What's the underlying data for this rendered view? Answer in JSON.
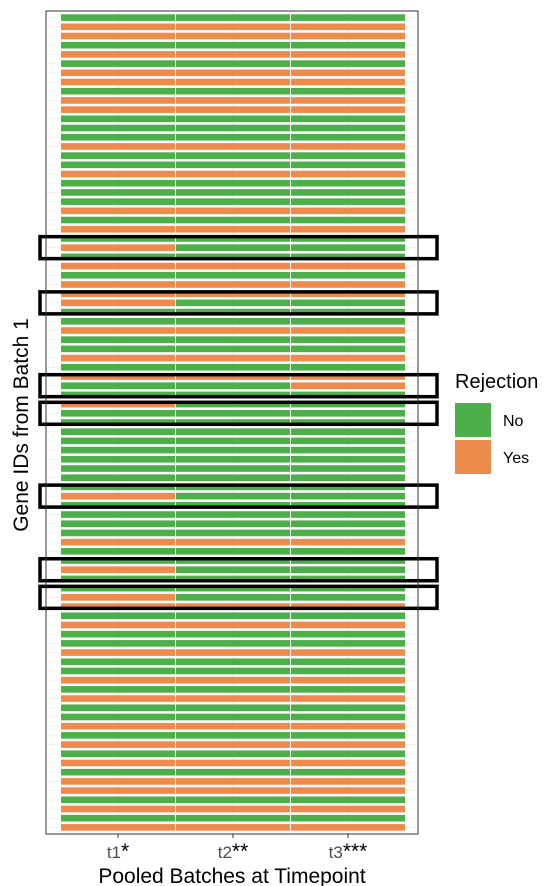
{
  "chart_data": {
    "type": "heatmap",
    "title": "",
    "xlabel": "Pooled Batches at Timepoint",
    "ylabel": "Gene IDs from Batch 1",
    "x_categories": [
      "t1",
      "t2",
      "t3"
    ],
    "x_annotations": [
      "*",
      "**",
      "***"
    ],
    "legend": {
      "title": "Rejection",
      "placement": "right",
      "entries": [
        {
          "label": "No",
          "color": "#4daf4a"
        },
        {
          "label": "Yes",
          "color": "#ef8a4d"
        }
      ]
    },
    "colors": {
      "No": "#4daf4a",
      "Yes": "#ef8a4d"
    },
    "grid": true,
    "panel_border": true,
    "row_order": "top-to-bottom",
    "cells": [
      [
        "No",
        "No",
        "No"
      ],
      [
        "Yes",
        "Yes",
        "Yes"
      ],
      [
        "Yes",
        "Yes",
        "Yes"
      ],
      [
        "No",
        "No",
        "No"
      ],
      [
        "Yes",
        "Yes",
        "Yes"
      ],
      [
        "No",
        "No",
        "No"
      ],
      [
        "Yes",
        "Yes",
        "Yes"
      ],
      [
        "Yes",
        "Yes",
        "Yes"
      ],
      [
        "No",
        "No",
        "No"
      ],
      [
        "Yes",
        "Yes",
        "Yes"
      ],
      [
        "Yes",
        "Yes",
        "Yes"
      ],
      [
        "No",
        "No",
        "No"
      ],
      [
        "No",
        "No",
        "No"
      ],
      [
        "No",
        "No",
        "No"
      ],
      [
        "Yes",
        "Yes",
        "Yes"
      ],
      [
        "No",
        "No",
        "No"
      ],
      [
        "No",
        "No",
        "No"
      ],
      [
        "Yes",
        "Yes",
        "Yes"
      ],
      [
        "No",
        "No",
        "No"
      ],
      [
        "No",
        "No",
        "No"
      ],
      [
        "No",
        "No",
        "No"
      ],
      [
        "Yes",
        "Yes",
        "Yes"
      ],
      [
        "No",
        "No",
        "No"
      ],
      [
        "Yes",
        "Yes",
        "Yes"
      ],
      [
        "No",
        "No",
        "No"
      ],
      [
        "Yes",
        "No",
        "No"
      ],
      [
        "No",
        "No",
        "No"
      ],
      [
        "Yes",
        "Yes",
        "Yes"
      ],
      [
        "No",
        "No",
        "No"
      ],
      [
        "Yes",
        "Yes",
        "Yes"
      ],
      [
        "Yes",
        "Yes",
        "Yes"
      ],
      [
        "Yes",
        "No",
        "No"
      ],
      [
        "No",
        "No",
        "No"
      ],
      [
        "No",
        "No",
        "No"
      ],
      [
        "Yes",
        "Yes",
        "Yes"
      ],
      [
        "No",
        "No",
        "No"
      ],
      [
        "No",
        "No",
        "No"
      ],
      [
        "Yes",
        "Yes",
        "Yes"
      ],
      [
        "No",
        "No",
        "No"
      ],
      [
        "Yes",
        "Yes",
        "Yes"
      ],
      [
        "No",
        "No",
        "Yes"
      ],
      [
        "No",
        "No",
        "No"
      ],
      [
        "Yes",
        "No",
        "No"
      ],
      [
        "No",
        "No",
        "No"
      ],
      [
        "No",
        "No",
        "No"
      ],
      [
        "No",
        "No",
        "No"
      ],
      [
        "No",
        "No",
        "No"
      ],
      [
        "No",
        "No",
        "No"
      ],
      [
        "No",
        "No",
        "No"
      ],
      [
        "No",
        "No",
        "No"
      ],
      [
        "No",
        "No",
        "No"
      ],
      [
        "No",
        "No",
        "No"
      ],
      [
        "Yes",
        "No",
        "No"
      ],
      [
        "No",
        "No",
        "No"
      ],
      [
        "No",
        "No",
        "No"
      ],
      [
        "No",
        "No",
        "No"
      ],
      [
        "No",
        "No",
        "No"
      ],
      [
        "Yes",
        "Yes",
        "Yes"
      ],
      [
        "No",
        "No",
        "No"
      ],
      [
        "No",
        "No",
        "No"
      ],
      [
        "Yes",
        "No",
        "No"
      ],
      [
        "No",
        "No",
        "No"
      ],
      [
        "No",
        "No",
        "No"
      ],
      [
        "Yes",
        "No",
        "No"
      ],
      [
        "Yes",
        "Yes",
        "Yes"
      ],
      [
        "No",
        "No",
        "No"
      ],
      [
        "Yes",
        "Yes",
        "Yes"
      ],
      [
        "No",
        "No",
        "No"
      ],
      [
        "No",
        "No",
        "No"
      ],
      [
        "Yes",
        "Yes",
        "Yes"
      ],
      [
        "No",
        "No",
        "No"
      ],
      [
        "No",
        "No",
        "No"
      ],
      [
        "Yes",
        "Yes",
        "Yes"
      ],
      [
        "No",
        "No",
        "No"
      ],
      [
        "Yes",
        "Yes",
        "Yes"
      ],
      [
        "No",
        "No",
        "No"
      ],
      [
        "No",
        "No",
        "No"
      ],
      [
        "Yes",
        "Yes",
        "Yes"
      ],
      [
        "No",
        "No",
        "No"
      ],
      [
        "Yes",
        "Yes",
        "Yes"
      ],
      [
        "No",
        "No",
        "No"
      ],
      [
        "Yes",
        "Yes",
        "Yes"
      ],
      [
        "No",
        "No",
        "No"
      ],
      [
        "Yes",
        "Yes",
        "Yes"
      ],
      [
        "Yes",
        "Yes",
        "Yes"
      ],
      [
        "No",
        "No",
        "No"
      ],
      [
        "Yes",
        "Yes",
        "Yes"
      ],
      [
        "No",
        "No",
        "No"
      ],
      [
        "Yes",
        "Yes",
        "Yes"
      ]
    ],
    "highlighted_rows": [
      25,
      31,
      40,
      43,
      52,
      60,
      63
    ]
  }
}
